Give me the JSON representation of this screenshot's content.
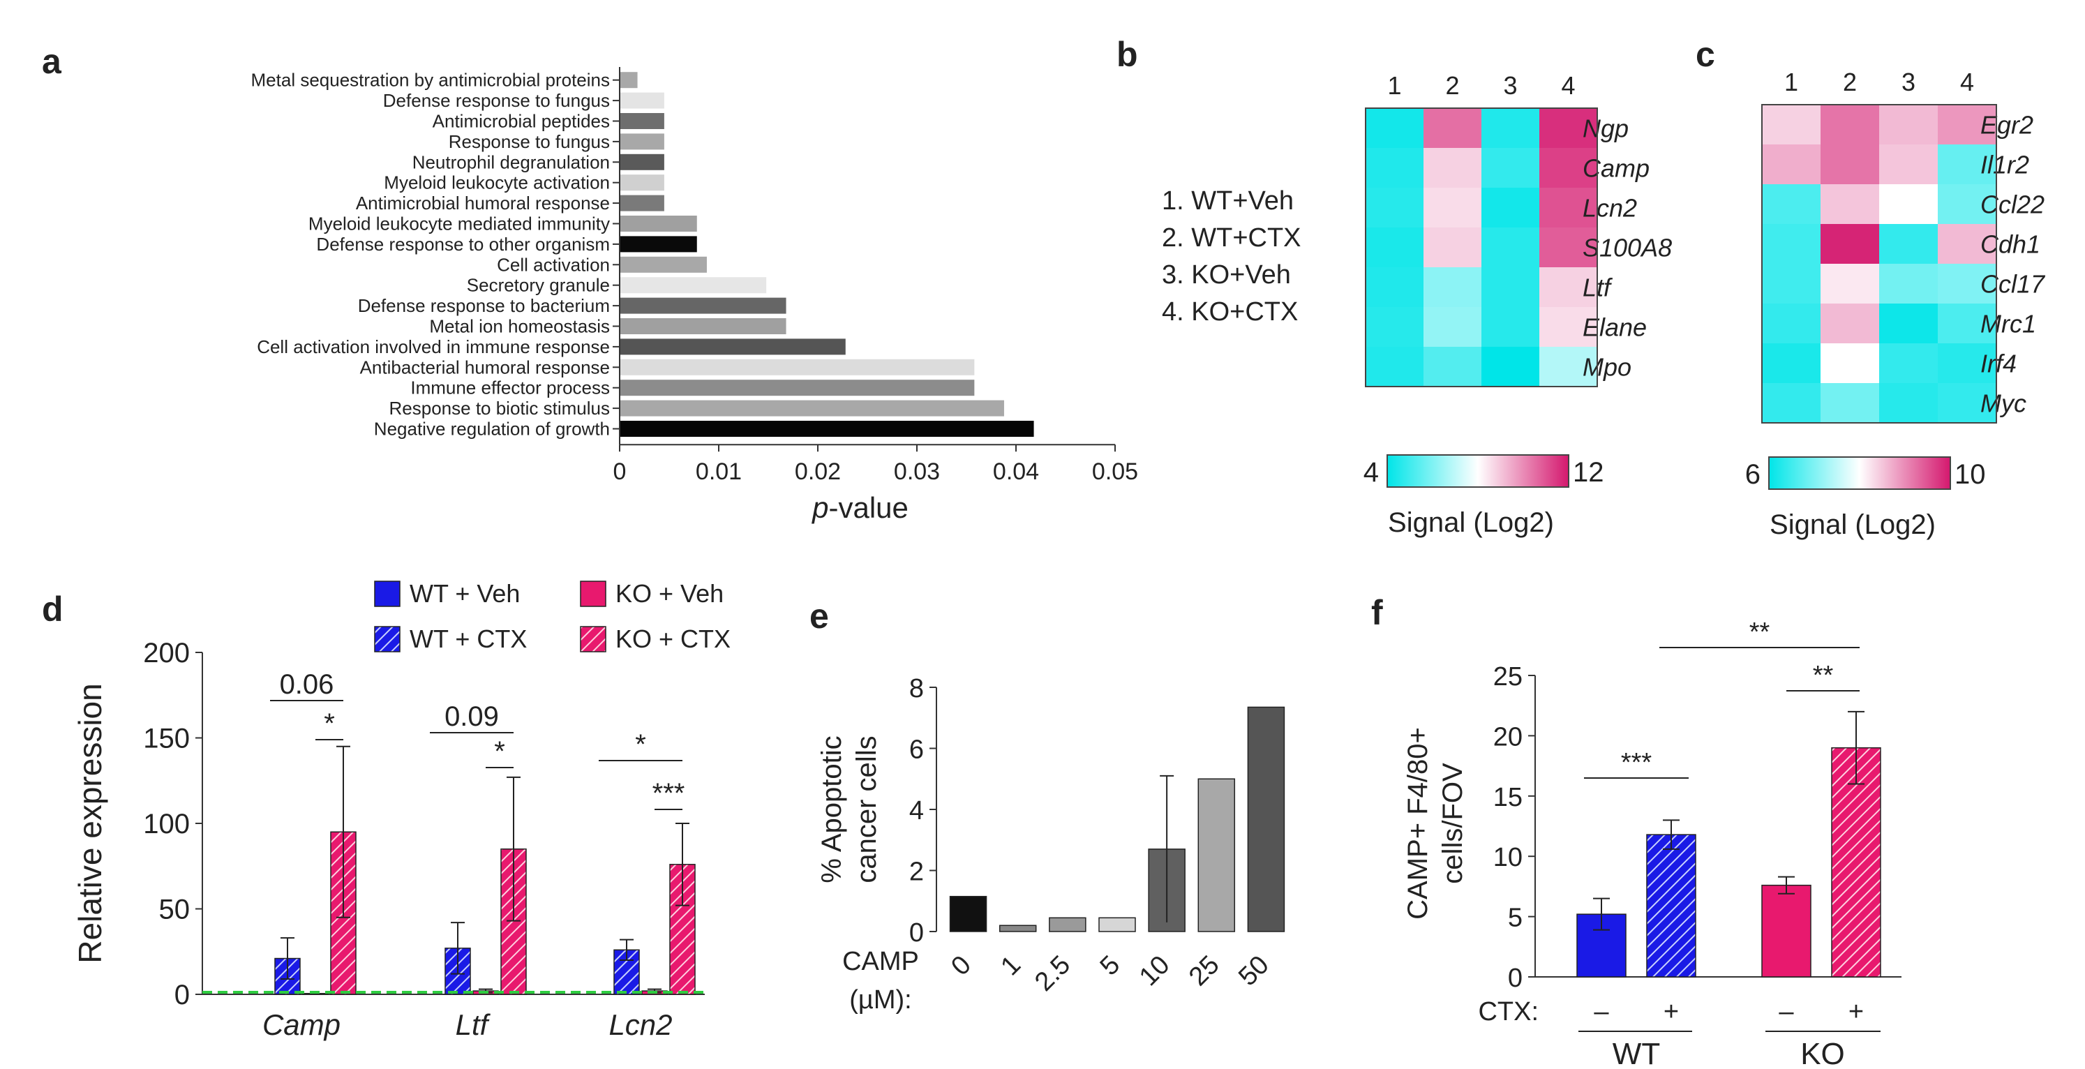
{
  "panels": {
    "a": "a",
    "b": "b",
    "c": "c",
    "d": "d",
    "e": "e",
    "f": "f"
  },
  "chart_data": [
    {
      "id": "a",
      "type": "bar",
      "orientation": "horizontal",
      "xlabel_italic": "p",
      "xlabel_rest": "-value",
      "xlim": [
        0,
        0.05
      ],
      "xticks": [
        "0",
        "0.01",
        "0.02",
        "0.03",
        "0.04",
        "0.05"
      ],
      "categories": [
        "Metal sequestration by antimicrobial proteins",
        "Defense response to fungus",
        "Antimicrobial peptides",
        "Response to fungus",
        "Neutrophil degranulation",
        "Myeloid leukocyte activation",
        "Antimicrobial humoral response",
        "Myeloid leukocyte mediated immunity",
        "Defense response to other organism",
        "Cell activation",
        "Secretory granule",
        "Defense response to bacterium",
        "Metal ion homeostasis",
        "Cell activation involved in immune  response",
        "Antibacterial humoral response",
        "Immune  effector process",
        "Response to biotic stimulus",
        "Negative regulation of growth"
      ],
      "values": [
        0.0018,
        0.0045,
        0.0045,
        0.0045,
        0.0045,
        0.0045,
        0.0045,
        0.0078,
        0.0078,
        0.0088,
        0.0148,
        0.0168,
        0.0168,
        0.0228,
        0.0358,
        0.0358,
        0.0388,
        0.0418
      ],
      "colors": [
        "#a8a8a8",
        "#e4e4e4",
        "#6e6e6e",
        "#a8a8a8",
        "#5a5a5a",
        "#d0d0d0",
        "#7a7a7a",
        "#a0a0a0",
        "#0a0a0a",
        "#a8a8a8",
        "#e6e6e6",
        "#666666",
        "#a0a0a0",
        "#555555",
        "#dcdcdc",
        "#8c8c8c",
        "#a8a8a8",
        "#050505"
      ]
    },
    {
      "id": "b",
      "type": "heatmap",
      "columns": [
        "1",
        "2",
        "3",
        "4"
      ],
      "rows": [
        "Ngp",
        "Camp",
        "Lcn2",
        "S100A8",
        "Ltf",
        "Elane",
        "Mpo"
      ],
      "values": [
        [
          4.3,
          10.5,
          4.5,
          11.6
        ],
        [
          4.5,
          8.8,
          4.8,
          11.3
        ],
        [
          4.6,
          8.6,
          4.3,
          11.0
        ],
        [
          4.4,
          8.8,
          4.6,
          10.8
        ],
        [
          4.5,
          6.2,
          4.6,
          8.8
        ],
        [
          4.6,
          6.3,
          4.6,
          8.6
        ],
        [
          4.5,
          5.3,
          4.0,
          6.8
        ]
      ],
      "legend_entries": [
        "1.  WT+Veh",
        "2.  WT+CTX",
        "3.  KO+Veh",
        "4.  KO+CTX"
      ],
      "colorbar_min": "4",
      "colorbar_max": "12",
      "colorbar_range": [
        4,
        12
      ],
      "colorbar_label": "Signal (Log2)"
    },
    {
      "id": "c",
      "type": "heatmap",
      "columns": [
        "1",
        "2",
        "3",
        "4"
      ],
      "rows": [
        "Egr2",
        "Il1r2",
        "Ccl22",
        "Cdh1",
        "Ccl17",
        "Mrc1",
        "Irf4",
        "Myc"
      ],
      "values": [
        [
          8.4,
          9.2,
          8.6,
          8.9
        ],
        [
          8.7,
          9.2,
          8.5,
          6.8
        ],
        [
          6.6,
          8.5,
          8.0,
          6.9
        ],
        [
          6.5,
          9.9,
          6.4,
          8.6
        ],
        [
          6.5,
          8.2,
          6.9,
          7.0
        ],
        [
          6.4,
          8.6,
          6.1,
          6.6
        ],
        [
          6.2,
          8.0,
          6.4,
          6.3
        ],
        [
          6.4,
          6.9,
          6.3,
          6.4
        ]
      ],
      "colorbar_min": "6",
      "colorbar_max": "10",
      "colorbar_range": [
        6,
        10
      ],
      "colorbar_label": "Signal (Log2)"
    },
    {
      "id": "d",
      "type": "bar",
      "ylabel": "Relative expression",
      "ylim": [
        0,
        200
      ],
      "yticks": [
        "0",
        "50",
        "100",
        "150",
        "200"
      ],
      "categories": [
        "Camp",
        "Ltf",
        "Lcn2"
      ],
      "series": [
        {
          "name": "WT + Veh",
          "color": "#1a1ae6",
          "pattern": "solid",
          "values": [
            0,
            0,
            0
          ],
          "errors": [
            0,
            0,
            0
          ]
        },
        {
          "name": "WT + CTX",
          "color": "#1a1ae6",
          "pattern": "hatch",
          "values": [
            21,
            27,
            26
          ],
          "errors": [
            12,
            15,
            6
          ]
        },
        {
          "name": "KO + Veh",
          "color": "#e8196e",
          "pattern": "solid",
          "values": [
            0.5,
            2,
            2
          ],
          "errors": [
            0,
            1,
            1
          ]
        },
        {
          "name": "KO + CTX",
          "color": "#e8196e",
          "pattern": "hatch",
          "values": [
            95,
            85,
            76
          ],
          "errors": [
            50,
            42,
            24
          ]
        }
      ],
      "annotations": [
        {
          "category": "Camp",
          "text": "0.06"
        },
        {
          "category": "Camp",
          "text": "*"
        },
        {
          "category": "Ltf",
          "text": "0.09"
        },
        {
          "category": "Ltf",
          "text": "*"
        },
        {
          "category": "Lcn2",
          "text": "*"
        },
        {
          "category": "Lcn2",
          "text": "***"
        }
      ],
      "baseline_color": "#2ecc40"
    },
    {
      "id": "e",
      "type": "bar",
      "ylabel_line1": "% Apoptotic",
      "ylabel_line2": "cancer cells",
      "ylim": [
        0,
        8
      ],
      "yticks": [
        "0",
        "2",
        "4",
        "6",
        "8"
      ],
      "xtitle_line1": "CAMP",
      "xtitle_line2": "(µM):",
      "categories": [
        "0",
        "1",
        "2.5",
        "5",
        "10",
        "25",
        "50"
      ],
      "values": [
        1.15,
        0.2,
        0.45,
        0.45,
        2.7,
        5.0,
        7.35
      ],
      "errors": [
        0,
        0,
        0,
        0,
        2.4,
        0,
        0
      ],
      "colors": [
        "#111111",
        "#888888",
        "#9a9a9a",
        "#d6d6d6",
        "#606060",
        "#a8a8a8",
        "#555555"
      ]
    },
    {
      "id": "f",
      "type": "bar",
      "ylabel_line1": "CAMP+ F4/80+",
      "ylabel_line2": "cells/FOV",
      "ylim": [
        0,
        25
      ],
      "yticks": [
        "0",
        "5",
        "10",
        "15",
        "20",
        "25"
      ],
      "ctx_label": "CTX:",
      "ctx_signs": [
        "–",
        "+",
        "–",
        "+"
      ],
      "groups": [
        "WT",
        "KO"
      ],
      "bars": [
        {
          "group": "WT",
          "ctx": "–",
          "value": 5.2,
          "error": 1.3,
          "color": "#1a1ae6",
          "pattern": "solid"
        },
        {
          "group": "WT",
          "ctx": "+",
          "value": 11.8,
          "error": 1.2,
          "color": "#1a1ae6",
          "pattern": "hatch"
        },
        {
          "group": "KO",
          "ctx": "–",
          "value": 7.6,
          "error": 0.7,
          "color": "#e8196e",
          "pattern": "solid"
        },
        {
          "group": "KO",
          "ctx": "+",
          "value": 19.0,
          "error": 3.0,
          "color": "#e8196e",
          "pattern": "hatch"
        }
      ],
      "significance": [
        "***",
        "**",
        "**"
      ]
    }
  ]
}
